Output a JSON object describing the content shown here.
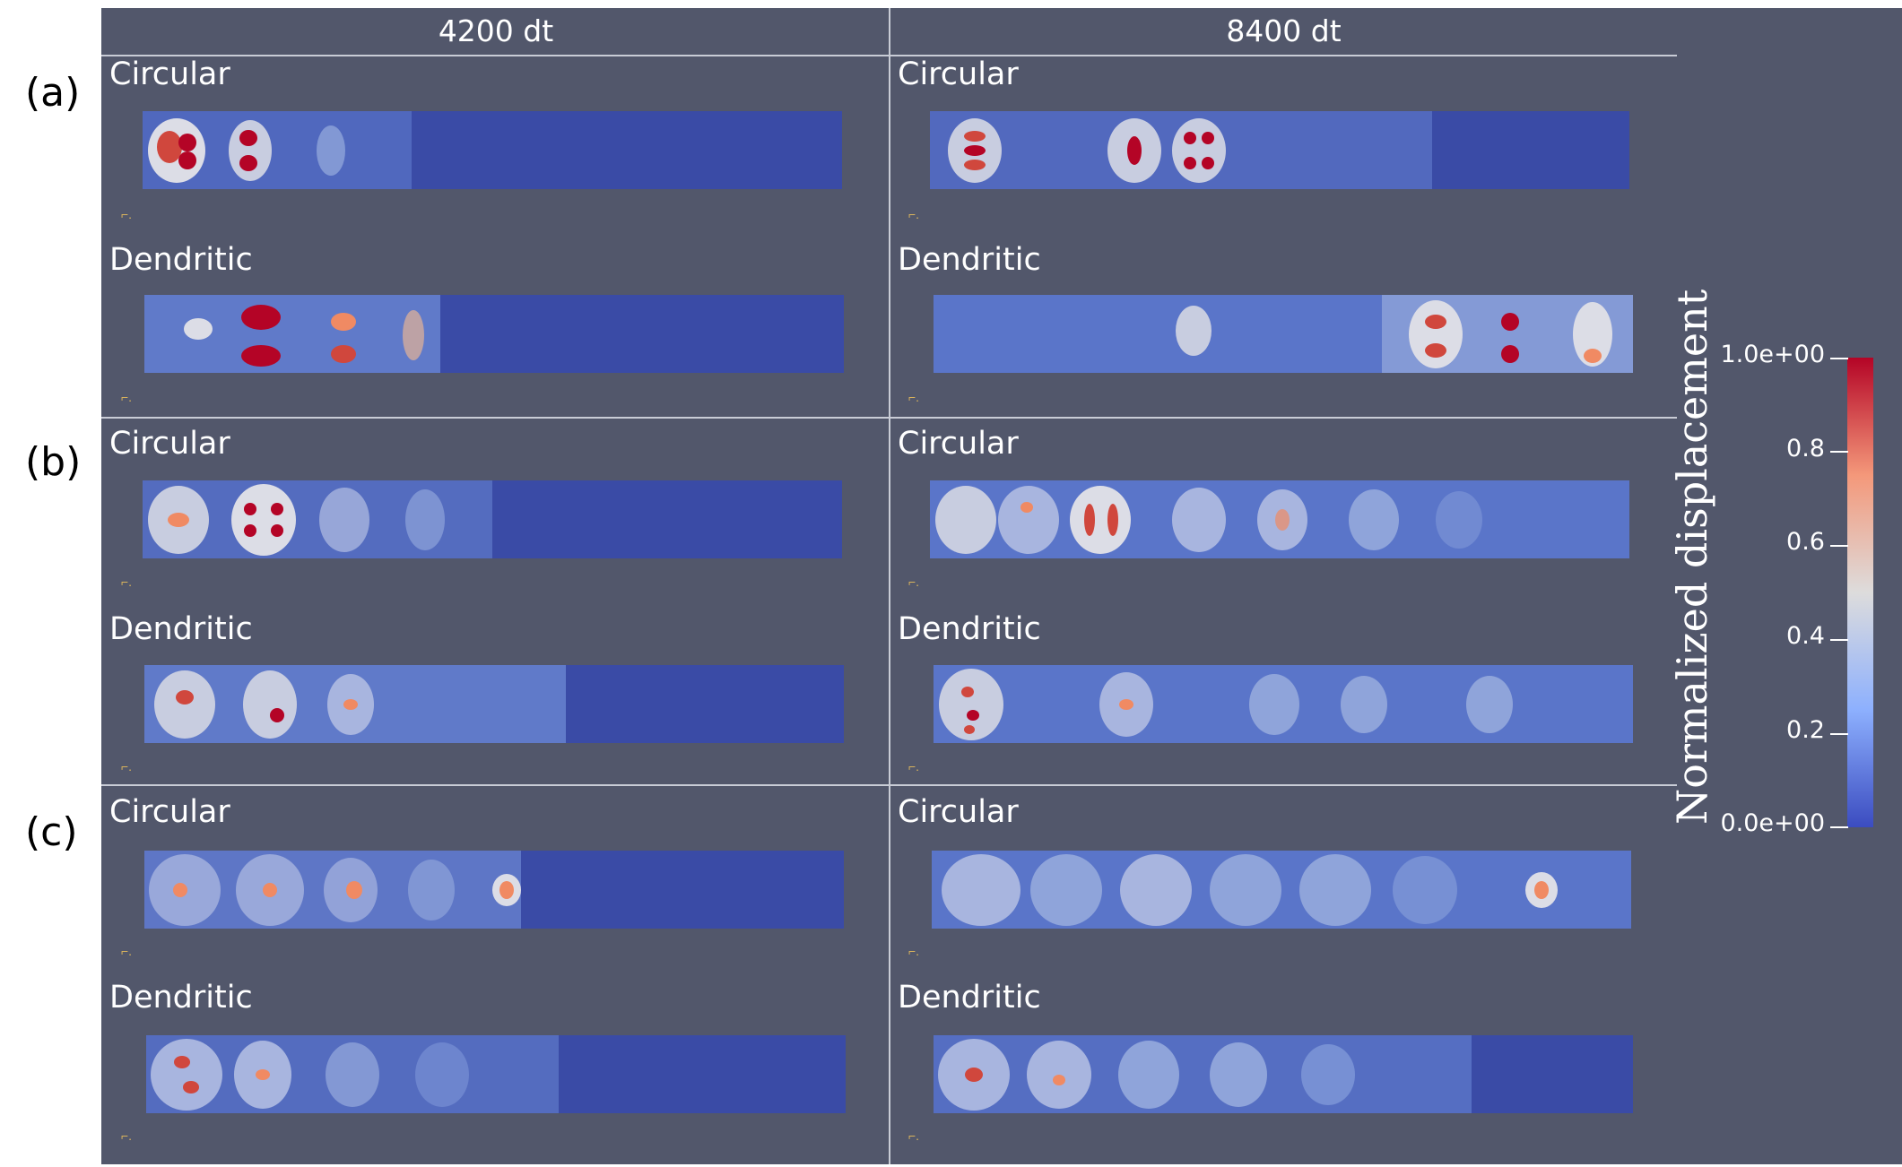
{
  "columns": [
    "4200 dt",
    "8400 dt"
  ],
  "rows": [
    {
      "label": "(a)",
      "panels": [
        "Circular",
        "Dendritic",
        "Circular",
        "Dendritic"
      ]
    },
    {
      "label": "(b)",
      "panels": [
        "Circular",
        "Dendritic",
        "Circular",
        "Dendritic"
      ]
    },
    {
      "label": "(c)",
      "panels": [
        "Circular",
        "Dendritic",
        "Circular",
        "Dendritic"
      ]
    }
  ],
  "colorbar": {
    "title": "Normalized displacement",
    "ticks": [
      "1.0e+00",
      "0.8",
      "0.6",
      "0.4",
      "0.2",
      "0.0e+00"
    ],
    "colors": {
      "low": "#3b4cc0",
      "mid": "#dddcdc",
      "high": "#b40426"
    }
  },
  "colors": {
    "background": "#52576b",
    "divider": "#c9ccd6",
    "field_base": "#3a4ba6"
  }
}
